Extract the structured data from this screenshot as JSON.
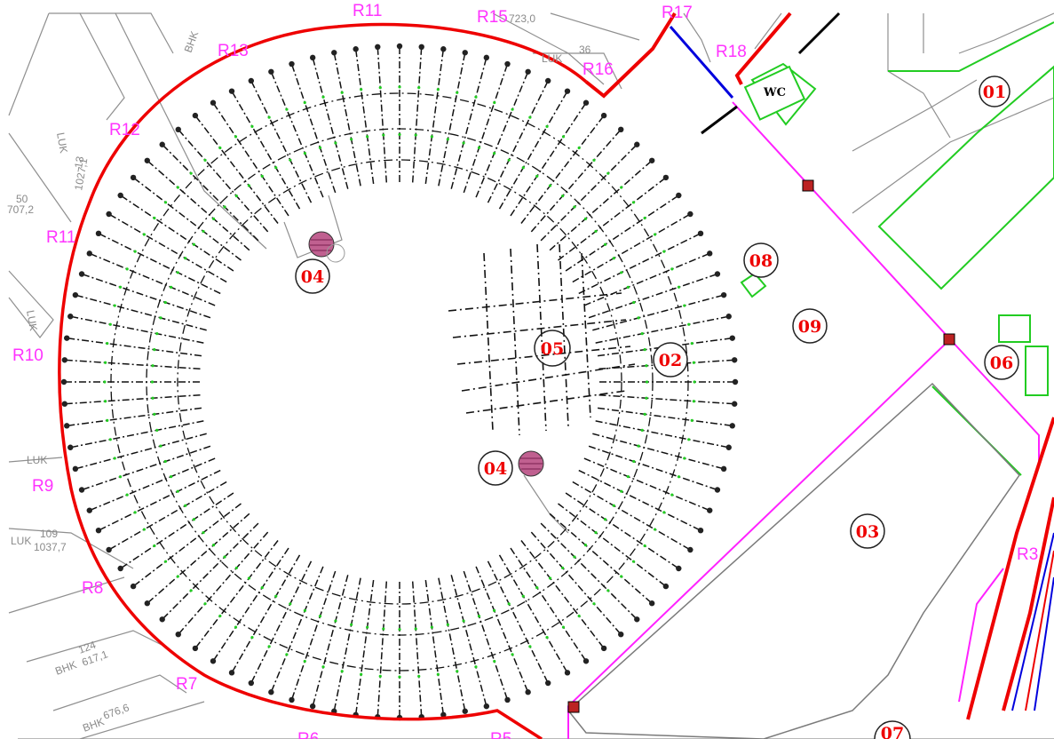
{
  "drawing": {
    "boundary_labels": [
      "R3",
      "R5",
      "R6",
      "R7",
      "R8",
      "R9",
      "R10",
      "R11",
      "R12",
      "R13",
      "R15",
      "R16",
      "R17",
      "R18",
      "R11"
    ],
    "parcel_labels": [
      "LUK",
      "LUK",
      "LUK",
      "LUK",
      "LUK",
      "BHK",
      "BHK",
      "BHK"
    ],
    "parcel_numbers": [
      "1027,1",
      "707,2",
      "1037,7",
      "109",
      "617,1",
      "124",
      "676,6",
      "723,0",
      "36",
      "50",
      "13"
    ],
    "zones": [
      "01",
      "02",
      "03",
      "04",
      "04",
      "05",
      "06",
      "08",
      "09",
      "07"
    ],
    "wc_label": "WC"
  },
  "colors": {
    "boundary": "#ee0000",
    "path": "#ff22ff",
    "grass": "#22cc22",
    "row_line": "#111111",
    "parcel": "#8f8f8f",
    "marker": "#c06090"
  }
}
